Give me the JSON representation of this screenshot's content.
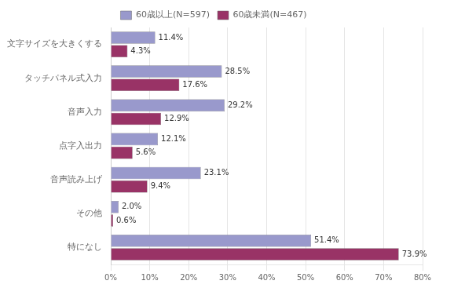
{
  "chart_data": {
    "type": "bar",
    "orientation": "horizontal",
    "categories": [
      "文字サイズを大きくする",
      "タッチパネル式入力",
      "音声入力",
      "点字入出力",
      "音声読み上げ",
      "その他",
      "特になし"
    ],
    "series": [
      {
        "name": "60歳以上(N=597)",
        "color": "#9999cc",
        "values": [
          11.4,
          28.5,
          29.2,
          12.1,
          23.1,
          2.0,
          51.4
        ],
        "value_labels": [
          "11.4%",
          "28.5%",
          "29.2%",
          "12.1%",
          "23.1%",
          "2.0%",
          "51.4%"
        ]
      },
      {
        "name": "60歳未満(N=467)",
        "color": "#993366",
        "values": [
          4.3,
          17.6,
          12.9,
          5.6,
          9.4,
          0.6,
          73.9
        ],
        "value_labels": [
          "4.3%",
          "17.6%",
          "12.9%",
          "5.6%",
          "9.4%",
          "0.6%",
          "73.9%"
        ]
      }
    ],
    "xlim": [
      0,
      80
    ],
    "xticks": [
      {
        "value": 0,
        "label": "0%"
      },
      {
        "value": 10,
        "label": "10%"
      },
      {
        "value": 20,
        "label": "20%"
      },
      {
        "value": 30,
        "label": "30%"
      },
      {
        "value": 40,
        "label": "40%"
      },
      {
        "value": 50,
        "label": "50%"
      },
      {
        "value": 60,
        "label": "60%"
      },
      {
        "value": 70,
        "label": "70%"
      },
      {
        "value": 80,
        "label": "80%"
      }
    ],
    "grid": true,
    "legend": "upper center",
    "data_labels": true
  }
}
